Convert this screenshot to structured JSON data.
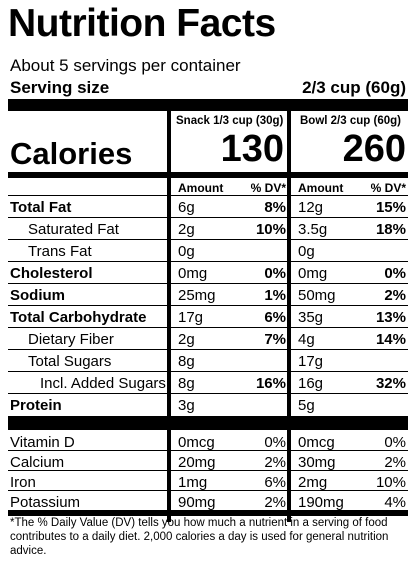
{
  "title": "Nutrition Facts",
  "servings": "About 5 servings per container",
  "serving_size": {
    "label": "Serving size",
    "value": "2/3 cup (60g)"
  },
  "columns": [
    "Snack 1/3 cup (30g)",
    "Bowl 2/3 cup (60g)"
  ],
  "calories": {
    "label": "Calories",
    "values": [
      "130",
      "260"
    ]
  },
  "amount_header": [
    "Amount",
    "% DV*",
    "Amount",
    "% DV*"
  ],
  "nutrients": [
    {
      "name": "Total Fat",
      "snack": {
        "amount": "6g",
        "dv": "8%"
      },
      "bowl": {
        "amount": "12g",
        "dv": "15%"
      }
    },
    {
      "name": "Saturated Fat",
      "snack": {
        "amount": "2g",
        "dv": "10%"
      },
      "bowl": {
        "amount": "3.5g",
        "dv": "18%"
      }
    },
    {
      "name": "Trans Fat",
      "snack": {
        "amount": "0g"
      },
      "bowl": {
        "amount": "0g"
      }
    },
    {
      "name": "Cholesterol",
      "snack": {
        "amount": "0mg",
        "dv": "0%"
      },
      "bowl": {
        "amount": "0mg",
        "dv": "0%"
      }
    },
    {
      "name": "Sodium",
      "snack": {
        "amount": "25mg",
        "dv": "1%"
      },
      "bowl": {
        "amount": "50mg",
        "dv": "2%"
      }
    },
    {
      "name": "Total Carbohydrate",
      "snack": {
        "amount": "17g",
        "dv": "6%"
      },
      "bowl": {
        "amount": "35g",
        "dv": "13%"
      }
    },
    {
      "name": "Dietary Fiber",
      "snack": {
        "amount": "2g",
        "dv": "7%"
      },
      "bowl": {
        "amount": "4g",
        "dv": "14%"
      }
    },
    {
      "name": "Total Sugars",
      "snack": {
        "amount": "8g"
      },
      "bowl": {
        "amount": "17g"
      }
    },
    {
      "name": "Incl. Added Sugars",
      "snack": {
        "amount": "8g",
        "dv": "16%"
      },
      "bowl": {
        "amount": "16g",
        "dv": "32%"
      }
    },
    {
      "name": "Protein",
      "snack": {
        "amount": "3g"
      },
      "bowl": {
        "amount": "5g"
      }
    }
  ],
  "vitamins": [
    {
      "name": "Vitamin D",
      "snack": {
        "amount": "0mcg",
        "dv": "0%"
      },
      "bowl": {
        "amount": "0mcg",
        "dv": "0%"
      }
    },
    {
      "name": "Calcium",
      "snack": {
        "amount": "20mg",
        "dv": "2%"
      },
      "bowl": {
        "amount": "30mg",
        "dv": "2%"
      }
    },
    {
      "name": "Iron",
      "snack": {
        "amount": "1mg",
        "dv": "6%"
      },
      "bowl": {
        "amount": "2mg",
        "dv": "10%"
      }
    },
    {
      "name": "Potassium",
      "snack": {
        "amount": "90mg",
        "dv": "2%"
      },
      "bowl": {
        "amount": "190mg",
        "dv": "4%"
      }
    }
  ],
  "footnote": "*The % Daily Value (DV) tells you how much a nutrient in a serving of food contributes to a daily diet. 2,000 calories a day is used for general nutrition advice."
}
